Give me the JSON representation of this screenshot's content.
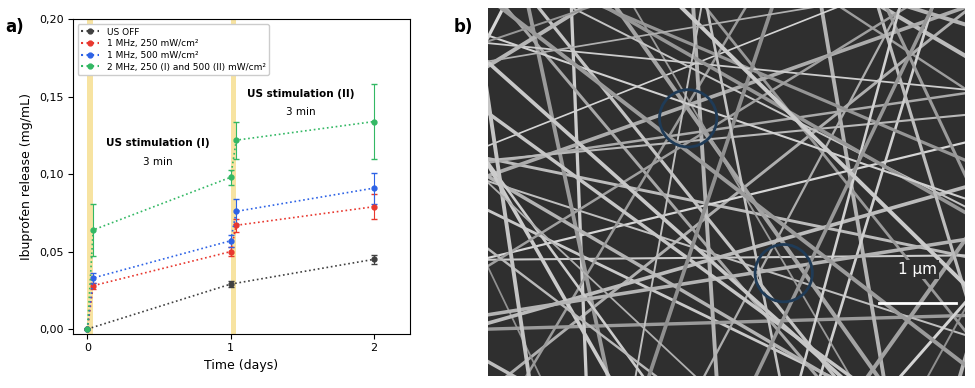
{
  "chart_data": {
    "type": "line",
    "label": "a)",
    "x_label": "Time (days)",
    "y_label": "Ibuprofen release (mg/mL)",
    "xlim": [
      -0.1,
      2.25
    ],
    "xticks": [
      0,
      1,
      2
    ],
    "ylim": [
      -0.003,
      0.2
    ],
    "yticks": [
      {
        "value": 0.0,
        "label": "0,00"
      },
      {
        "value": 0.05,
        "label": "0,05"
      },
      {
        "value": 0.1,
        "label": "0,10"
      },
      {
        "value": 0.15,
        "label": "0,15"
      },
      {
        "value": 0.2,
        "label": "0,20"
      }
    ],
    "legend": "upper left",
    "marker": "o",
    "line_style": "dotted",
    "stimulations": [
      {
        "start": 0,
        "end": 0.04,
        "label": "US stimulation (I)",
        "duration": "3 min"
      },
      {
        "start": 1,
        "end": 1.04,
        "label": "US stimulation (II)",
        "duration": "3 min"
      }
    ],
    "series": [
      {
        "name": "US OFF",
        "color": "#404040",
        "x": [
          0,
          1,
          2
        ],
        "values": [
          0,
          0.029,
          0.045
        ],
        "errors": [
          0,
          0.002,
          0.003
        ]
      },
      {
        "name": "1 MHz, 250 mW/cm²",
        "color": "#e8382f",
        "x": [
          0,
          0.04,
          1,
          1.04,
          2
        ],
        "values": [
          0,
          0.028,
          0.05,
          0.067,
          0.079
        ],
        "errors": [
          0,
          0.002,
          0.003,
          0.004,
          0.008
        ]
      },
      {
        "name": "1 MHz, 500 mW/cm²",
        "color": "#2e63e6",
        "x": [
          0,
          0.04,
          1,
          1.04,
          2
        ],
        "values": [
          0,
          0.033,
          0.057,
          0.076,
          0.091
        ],
        "errors": [
          0,
          0.003,
          0.004,
          0.008,
          0.01
        ]
      },
      {
        "name": "2 MHz, 250 (I) and 500 (II) mW/cm²",
        "color": "#33b864",
        "x": [
          0,
          0.04,
          1,
          1.04,
          2
        ],
        "values": [
          0,
          0.064,
          0.098,
          0.122,
          0.134
        ],
        "errors": [
          0,
          0.017,
          0.005,
          0.012,
          0.024
        ]
      }
    ]
  },
  "image": {
    "label": "b)",
    "scale_bar": "1 µm"
  }
}
